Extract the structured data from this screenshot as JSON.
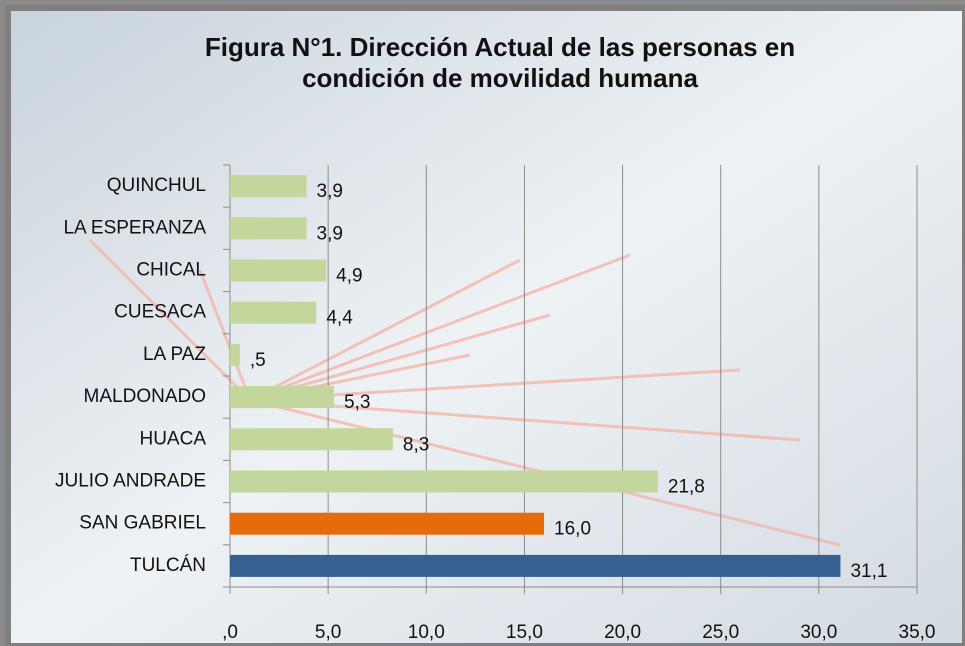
{
  "chart_data": {
    "type": "barh",
    "title": "Figura N°1. Dirección Actual de las personas en condición de movilidad humana",
    "categories": [
      "QUINCHUL",
      "LA ESPERANZA",
      "CHICAL",
      "CUESACA",
      "LA PAZ",
      "MALDONADO",
      "HUACA",
      "JULIO ANDRADE",
      "SAN GABRIEL",
      "TULCÁN"
    ],
    "values": [
      3.9,
      3.9,
      4.9,
      4.4,
      0.5,
      5.3,
      8.3,
      21.8,
      16.0,
      31.1
    ],
    "value_labels": [
      "3,9",
      "3,9",
      "4,9",
      "4,4",
      ",5",
      "5,3",
      "8,3",
      "21,8",
      "16,0",
      "31,1"
    ],
    "colors": [
      "#c3d69b",
      "#c3d69b",
      "#c3d69b",
      "#c3d69b",
      "#c3d69b",
      "#c3d69b",
      "#c3d69b",
      "#c3d69b",
      "#e46c0a",
      "#376092"
    ],
    "xlim": [
      0,
      35
    ],
    "xticks": [
      {
        "value": 0,
        "label": ",0"
      },
      {
        "value": 5,
        "label": "5,0"
      },
      {
        "value": 10,
        "label": "10,0"
      },
      {
        "value": 15,
        "label": "15,0"
      },
      {
        "value": 20,
        "label": "20,0"
      },
      {
        "value": 25,
        "label": "25,0"
      },
      {
        "value": 30,
        "label": "30,0"
      },
      {
        "value": 35,
        "label": "35,0"
      }
    ],
    "grid": true
  }
}
